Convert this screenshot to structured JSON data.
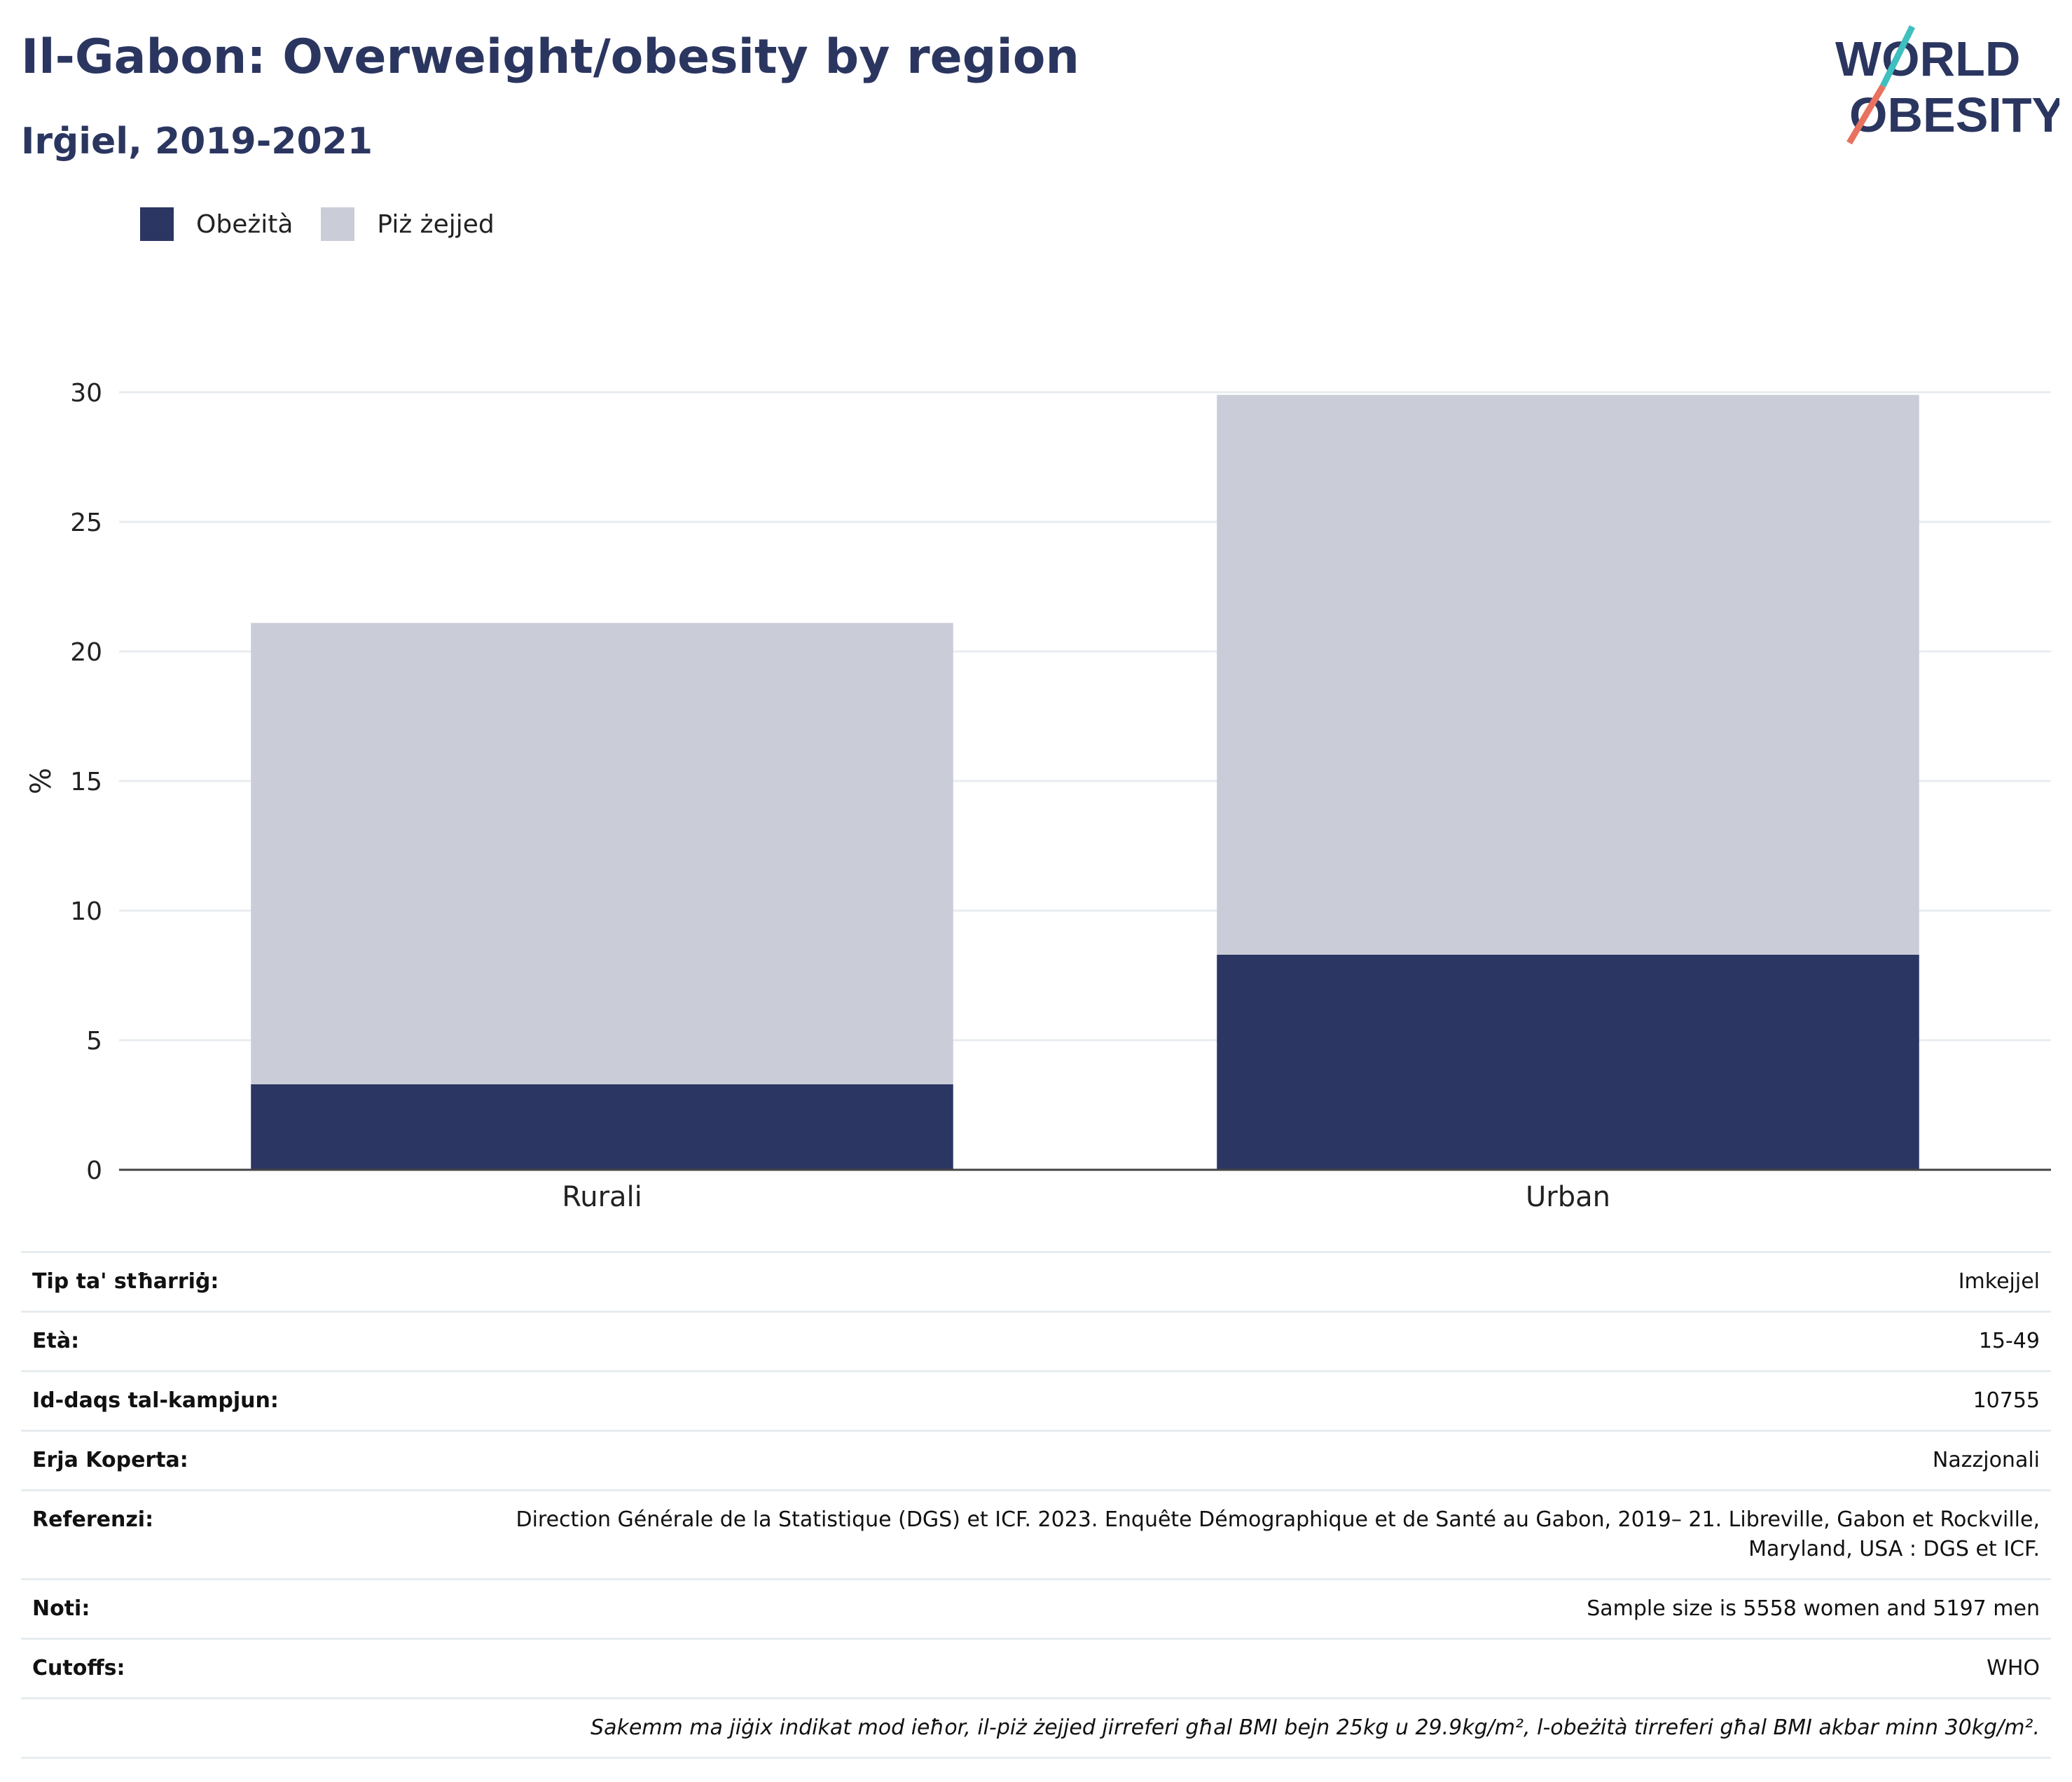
{
  "header": {
    "title": "Il-Gabon: Overweight/obesity by region",
    "subtitle": "Irġiel, 2019-2021"
  },
  "logo": {
    "line1": "WORLD",
    "line2": "OBESITY"
  },
  "colors": {
    "obesity": "#2b3663",
    "overweight": "#cacdd8",
    "text": "#2b3660",
    "grid": "#e8ecf0",
    "logo_teal": "#3fbfbf",
    "logo_red": "#e8725f"
  },
  "chart_data": {
    "type": "bar",
    "stacked": true,
    "categories": [
      "Rurali",
      "Urban"
    ],
    "series": [
      {
        "name": "Obeżità",
        "values": [
          3.3,
          8.3
        ]
      },
      {
        "name": "Piż żejjed",
        "values": [
          17.8,
          21.6
        ]
      }
    ],
    "ylabel": "%",
    "ylim": [
      0,
      30
    ],
    "yticks": [
      0,
      5,
      10,
      15,
      20,
      25,
      30
    ],
    "grid": true,
    "legend_position": "top-left"
  },
  "info": [
    {
      "key": "Tip ta' stħarriġ:",
      "value": "Imkejjel"
    },
    {
      "key": "Età:",
      "value": "15-49"
    },
    {
      "key": "Id-daqs tal-kampjun:",
      "value": "10755"
    },
    {
      "key": "Erja Koperta:",
      "value": "Nazzjonali"
    },
    {
      "key": "Referenzi:",
      "value": "Direction Générale de la Statistique (DGS) et ICF. 2023. Enquête Démographique et de Santé au Gabon, 2019– 21. Libreville, Gabon et Rockville, Maryland, USA : DGS et ICF."
    },
    {
      "key": "Noti:",
      "value": "Sample size is 5558 women and 5197 men"
    },
    {
      "key": "Cutoffs:",
      "value": "WHO"
    }
  ],
  "footnote": "Sakemm ma jiġix indikat mod ieħor, il-piż żejjed jirreferi għal BMI bejn 25kg u 29.9kg/m², l-obeżità tirreferi għal BMI akbar minn 30kg/m²."
}
